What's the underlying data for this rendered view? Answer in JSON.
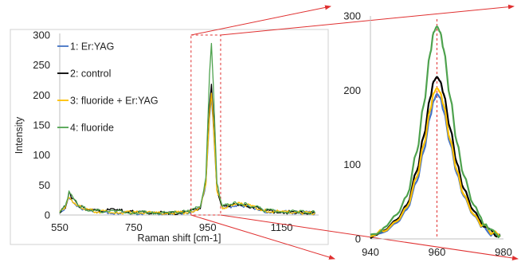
{
  "chart_data": [
    {
      "type": "line",
      "xlabel": "Raman shift [cm-1]",
      "ylabel": "Intensity",
      "xlim": [
        550,
        1250
      ],
      "ylim": [
        0,
        300
      ],
      "x_ticks": [
        "550",
        "750",
        "950",
        "1150"
      ],
      "y_ticks": [
        "0",
        "50",
        "100",
        "150",
        "200",
        "250",
        "300"
      ],
      "legend_position": "top-left",
      "highlight_region": [
        905,
        985
      ],
      "series": [
        {
          "name": "1: Er:YAG",
          "color": "#4472c4",
          "x": [
            550,
            565,
            575,
            585,
            600,
            620,
            650,
            700,
            750,
            800,
            850,
            900,
            930,
            945,
            955,
            960,
            965,
            975,
            990,
            1010,
            1030,
            1050,
            1080,
            1100,
            1150,
            1200,
            1240
          ],
          "y": [
            4,
            12,
            30,
            22,
            14,
            9,
            5,
            4,
            3,
            3,
            3,
            5,
            12,
            50,
            160,
            196,
            150,
            40,
            12,
            14,
            16,
            15,
            11,
            6,
            5,
            4,
            3
          ]
        },
        {
          "name": "2: control",
          "color": "#000000",
          "x": [
            550,
            565,
            575,
            585,
            600,
            620,
            650,
            700,
            750,
            800,
            850,
            900,
            930,
            945,
            955,
            960,
            965,
            975,
            990,
            1010,
            1030,
            1050,
            1080,
            1100,
            1150,
            1200,
            1240
          ],
          "y": [
            6,
            14,
            36,
            26,
            16,
            10,
            7,
            8,
            5,
            4,
            3,
            5,
            13,
            55,
            180,
            218,
            168,
            42,
            12,
            15,
            18,
            16,
            12,
            7,
            5,
            4,
            3
          ]
        },
        {
          "name": "3: fluoride + Er:YAG",
          "color": "#ffc000",
          "x": [
            550,
            565,
            575,
            585,
            600,
            620,
            650,
            700,
            750,
            800,
            850,
            900,
            930,
            945,
            955,
            960,
            965,
            975,
            990,
            1010,
            1030,
            1050,
            1080,
            1100,
            1150,
            1200,
            1240
          ],
          "y": [
            5,
            13,
            32,
            24,
            15,
            9,
            6,
            5,
            4,
            3,
            3,
            5,
            12,
            52,
            168,
            203,
            156,
            42,
            12,
            16,
            19,
            17,
            13,
            7,
            5,
            4,
            3
          ]
        },
        {
          "name": "4: fluoride",
          "color": "#4ea24e",
          "x": [
            550,
            565,
            575,
            585,
            600,
            620,
            650,
            700,
            750,
            800,
            850,
            900,
            930,
            945,
            955,
            960,
            965,
            975,
            990,
            1010,
            1030,
            1050,
            1080,
            1100,
            1150,
            1200,
            1240
          ],
          "y": [
            6,
            16,
            38,
            28,
            17,
            10,
            7,
            6,
            4,
            4,
            3,
            6,
            14,
            62,
            235,
            286,
            220,
            52,
            14,
            18,
            20,
            18,
            14,
            8,
            6,
            5,
            4
          ]
        }
      ]
    },
    {
      "type": "line",
      "xlim": [
        940,
        980
      ],
      "ylim": [
        0,
        300
      ],
      "x_ticks": [
        "940",
        "960",
        "980"
      ],
      "y_ticks": [
        "0",
        "100",
        "200",
        "300"
      ],
      "peak_marker_x": 960,
      "series": [
        {
          "name": "1: Er:YAG",
          "color": "#4472c4",
          "x": [
            940,
            944,
            948,
            951,
            954,
            956,
            958,
            959,
            960,
            961,
            962,
            964,
            966,
            968,
            971,
            974,
            977,
            979
          ],
          "y": [
            2,
            9,
            22,
            40,
            78,
            118,
            165,
            186,
            195,
            190,
            172,
            128,
            88,
            58,
            32,
            15,
            7,
            3
          ]
        },
        {
          "name": "2: control",
          "color": "#000000",
          "x": [
            940,
            944,
            948,
            951,
            954,
            956,
            958,
            959,
            960,
            961,
            962,
            964,
            966,
            968,
            971,
            974,
            977,
            979
          ],
          "y": [
            4,
            11,
            26,
            46,
            92,
            138,
            190,
            212,
            218,
            212,
            195,
            148,
            102,
            68,
            38,
            18,
            8,
            6
          ]
        },
        {
          "name": "3: fluoride + Er:YAG",
          "color": "#ffc000",
          "x": [
            940,
            944,
            948,
            951,
            954,
            956,
            958,
            959,
            960,
            961,
            962,
            964,
            966,
            968,
            971,
            974,
            977,
            979
          ],
          "y": [
            3,
            10,
            24,
            43,
            84,
            126,
            174,
            196,
            203,
            197,
            180,
            133,
            92,
            60,
            33,
            16,
            7,
            3
          ]
        },
        {
          "name": "4: fluoride",
          "color": "#4ea24e",
          "x": [
            940,
            944,
            948,
            951,
            954,
            956,
            958,
            959,
            960,
            961,
            962,
            964,
            966,
            968,
            971,
            974,
            977,
            979
          ],
          "y": [
            6,
            15,
            33,
            58,
            118,
            180,
            250,
            278,
            286,
            278,
            255,
            190,
            130,
            86,
            46,
            22,
            10,
            5
          ]
        }
      ]
    }
  ]
}
